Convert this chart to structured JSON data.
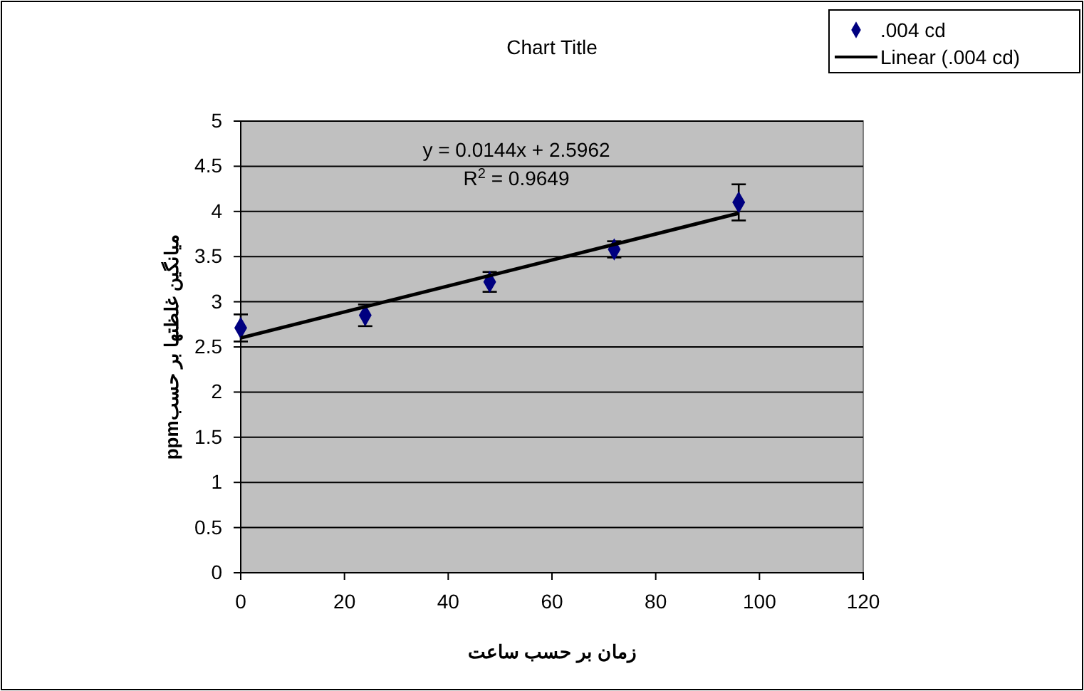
{
  "chart_data": {
    "type": "scatter",
    "title": "Chart Title",
    "xlabel": "زمان بر حسب ساعت",
    "ylabel": "میانگین غلظتها بر حسبppm",
    "x": [
      0,
      24,
      48,
      72,
      96
    ],
    "series": [
      {
        "name": ".004 cd",
        "color": "#000080",
        "values": [
          2.71,
          2.85,
          3.22,
          3.58,
          4.1
        ],
        "errors": [
          0.15,
          0.12,
          0.11,
          0.09,
          0.2
        ],
        "marker": "diamond"
      },
      {
        "name": "Linear (.004 cd)",
        "type": "line",
        "color": "#000000",
        "x": [
          0,
          96
        ],
        "values": [
          2.6,
          3.98
        ],
        "line_style": "solid",
        "marker": "none"
      }
    ],
    "annotations": [
      "y = 0.0144x + 2.5962",
      "R$^{2}$ = 0.9649"
    ],
    "xlim": [
      0,
      120
    ],
    "xticks": [
      0,
      20,
      40,
      60,
      80,
      100,
      120
    ],
    "ylim": [
      0,
      5
    ],
    "yticks": [
      0,
      0.5,
      1,
      1.5,
      2,
      2.5,
      3,
      3.5,
      4,
      4.5,
      5
    ],
    "grid": "y",
    "legend": "top right"
  }
}
